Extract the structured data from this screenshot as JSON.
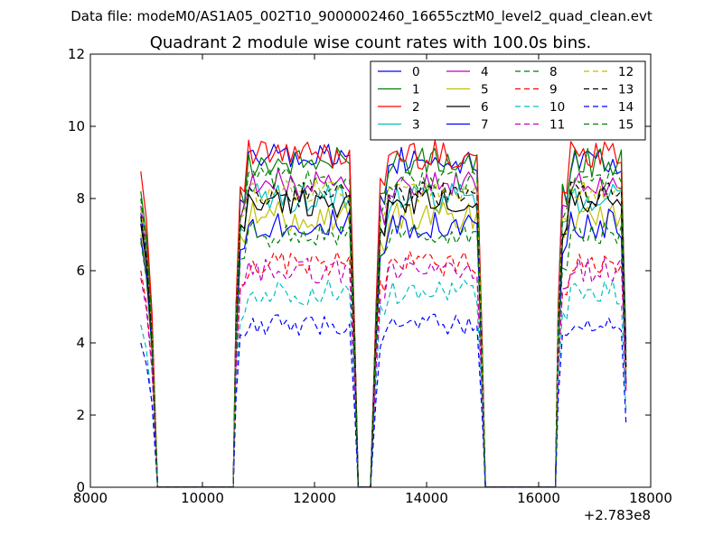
{
  "figure": {
    "suptitle": "Data file: modeM0/AS1A05_002T10_9000002460_16655cztM0_level2_quad_clean.evt"
  },
  "chart_data": {
    "type": "line",
    "title": "Quadrant 2 module wise count rates with 100.0s bins.",
    "xlabel": "",
    "ylabel": "",
    "x_offset_label": "+2.783e8",
    "xlim": [
      8000,
      18000
    ],
    "ylim": [
      0,
      12
    ],
    "xticks": [
      8000,
      10000,
      12000,
      14000,
      16000,
      18000
    ],
    "yticks": [
      0,
      2,
      4,
      6,
      8,
      10,
      12
    ],
    "grid": false,
    "legend_placement": "top-right",
    "legend_columns": 4,
    "segments": [
      {
        "start": 8900,
        "end": 9200,
        "zero_after": 9250
      },
      {
        "start": 10600,
        "end": 12650,
        "zero_after": 12800
      },
      {
        "start": 13100,
        "end": 15000,
        "zero_after": 15100
      },
      {
        "start": 16350,
        "end": 17550,
        "zero_after": null
      }
    ],
    "gaps_zero": [
      [
        9250,
        10550
      ],
      [
        12800,
        13000
      ],
      [
        15100,
        16300
      ]
    ],
    "series": [
      {
        "name": "0",
        "color": "#0000ff",
        "dash": "solid",
        "first": 7.6,
        "level": 9.1,
        "amp": 0.35
      },
      {
        "name": "1",
        "color": "#008000",
        "dash": "solid",
        "first": 8.2,
        "level": 9.0,
        "amp": 0.35
      },
      {
        "name": "2",
        "color": "#ff0000",
        "dash": "solid",
        "first": 8.75,
        "level": 9.2,
        "amp": 0.35
      },
      {
        "name": "3",
        "color": "#00bfbf",
        "dash": "solid",
        "first": 7.4,
        "level": 8.0,
        "amp": 0.35
      },
      {
        "name": "4",
        "color": "#bf00bf",
        "dash": "solid",
        "first": 7.8,
        "level": 8.4,
        "amp": 0.35
      },
      {
        "name": "5",
        "color": "#bfbf00",
        "dash": "solid",
        "first": 7.0,
        "level": 7.5,
        "amp": 0.35
      },
      {
        "name": "6",
        "color": "#000000",
        "dash": "solid",
        "first": 7.3,
        "level": 7.9,
        "amp": 0.35
      },
      {
        "name": "7",
        "color": "#0000ff",
        "dash": "solid",
        "first": 6.9,
        "level": 7.3,
        "amp": 0.35
      },
      {
        "name": "8",
        "color": "#008000",
        "dash": "dashed",
        "first": 6.8,
        "level": 7.0,
        "amp": 0.3
      },
      {
        "name": "9",
        "color": "#ff0000",
        "dash": "dashed",
        "first": 6.0,
        "level": 6.2,
        "amp": 0.3
      },
      {
        "name": "10",
        "color": "#00bfbf",
        "dash": "dashed",
        "first": 4.5,
        "level": 5.4,
        "amp": 0.3
      },
      {
        "name": "11",
        "color": "#bf00bf",
        "dash": "dashed",
        "first": 5.8,
        "level": 6.0,
        "amp": 0.3
      },
      {
        "name": "12",
        "color": "#bfbf00",
        "dash": "dashed",
        "first": 7.7,
        "level": 8.2,
        "amp": 0.3
      },
      {
        "name": "13",
        "color": "#000000",
        "dash": "dashed",
        "first": 7.5,
        "level": 8.1,
        "amp": 0.3
      },
      {
        "name": "14",
        "color": "#0000ff",
        "dash": "dashed",
        "first": 4.0,
        "level": 4.5,
        "amp": 0.25
      },
      {
        "name": "15",
        "color": "#008000",
        "dash": "dashed",
        "first": 8.0,
        "level": 8.5,
        "amp": 0.3
      }
    ]
  }
}
